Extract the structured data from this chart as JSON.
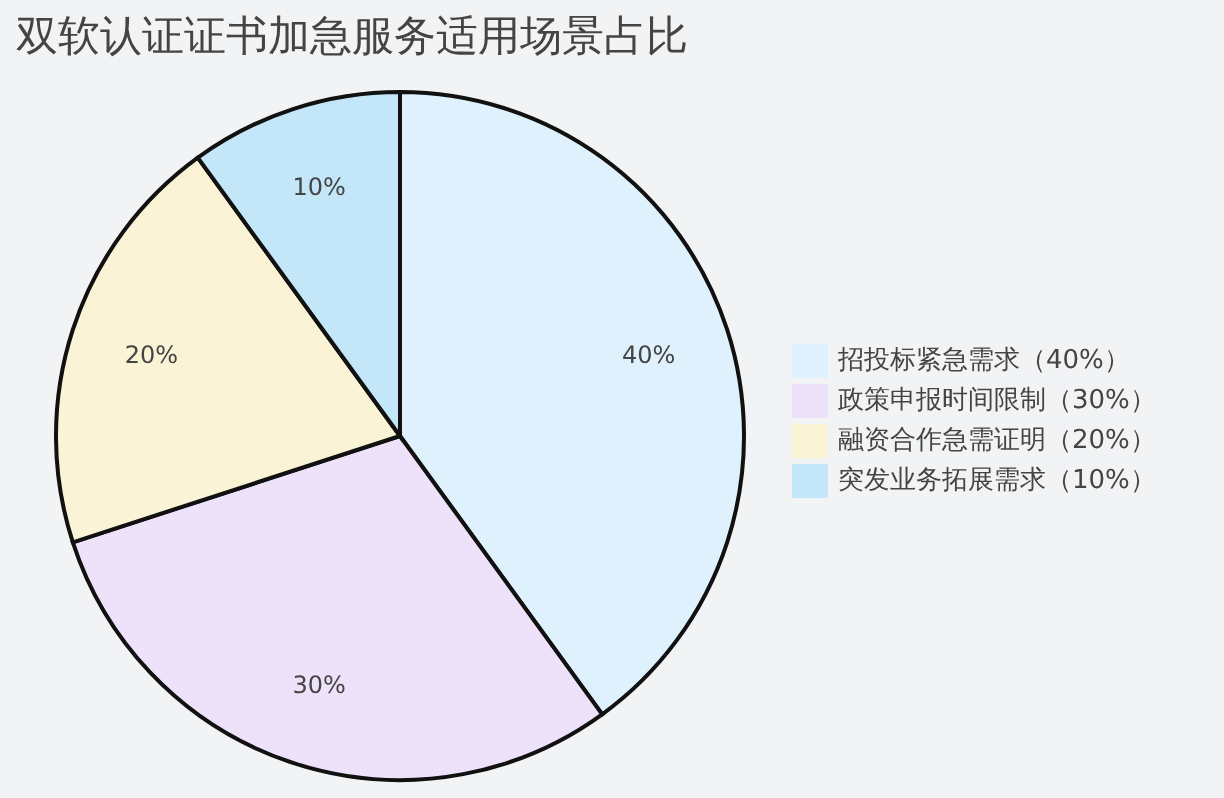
{
  "chart_data": {
    "type": "pie",
    "title": "双软认证证书加急服务适用场景占比",
    "categories": [
      "招投标紧急需求（40%）",
      "政策申报时间限制（30%）",
      "融资合作急需证明（20%）",
      "突发业务拓展需求（10%）"
    ],
    "values": [
      40,
      30,
      20,
      10
    ],
    "colors": [
      "#dff1fc",
      "#eee2fa",
      "#fbf3d6",
      "#c3e6f9"
    ],
    "value_labels": [
      "40%",
      "30%",
      "20%",
      "10%"
    ],
    "legend": "right"
  }
}
